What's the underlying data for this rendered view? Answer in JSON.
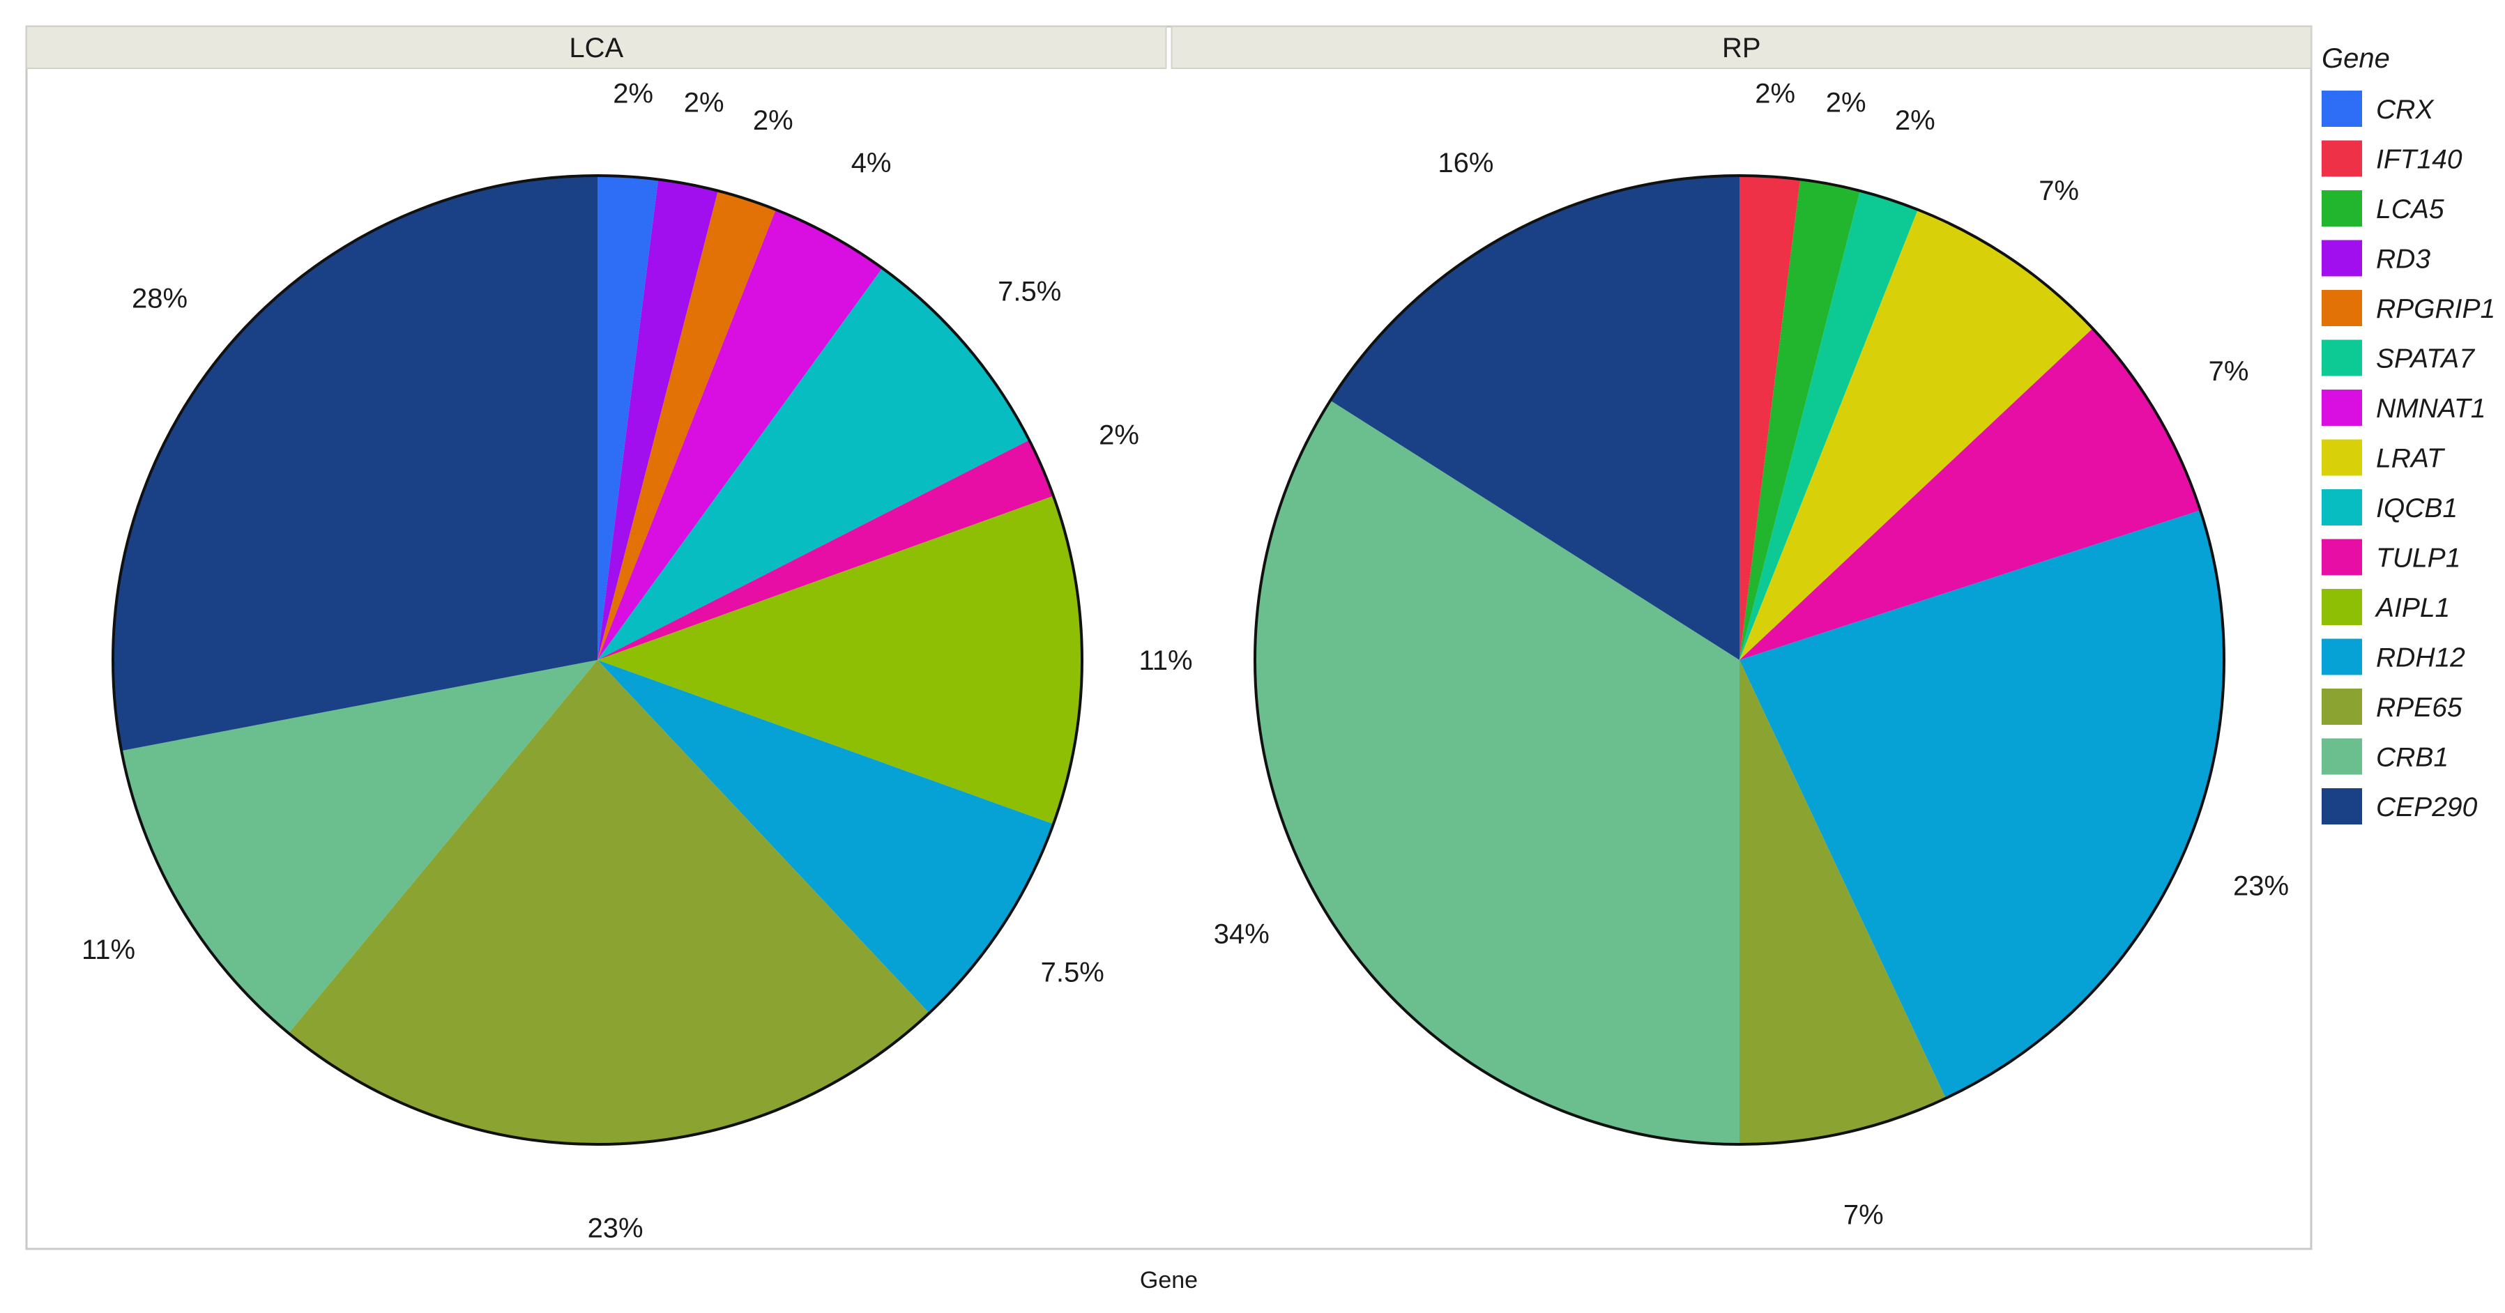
{
  "chart_data": {
    "type": "pie",
    "xlabel": "Gene",
    "legend": {
      "title": "Gene",
      "position": "right",
      "entries": [
        {
          "name": "CRX",
          "color": "#2e6ef7"
        },
        {
          "name": "IFT140",
          "color": "#ee3146"
        },
        {
          "name": "LCA5",
          "color": "#22b62f"
        },
        {
          "name": "RD3",
          "color": "#a20fee"
        },
        {
          "name": "RPGRIP1",
          "color": "#e37206"
        },
        {
          "name": "SPATA7",
          "color": "#0dc994"
        },
        {
          "name": "NMNAT1",
          "color": "#d90ee0"
        },
        {
          "name": "LRAT",
          "color": "#d8d10a"
        },
        {
          "name": "IQCB1",
          "color": "#07bdc1"
        },
        {
          "name": "TULP1",
          "color": "#e70ea5"
        },
        {
          "name": "AIPL1",
          "color": "#8fbf04"
        },
        {
          "name": "RDH12",
          "color": "#06a1d5"
        },
        {
          "name": "RPE65",
          "color": "#8ba431"
        },
        {
          "name": "CRB1",
          "color": "#6bbf8e"
        },
        {
          "name": "CEP290",
          "color": "#1a4185"
        }
      ]
    },
    "panels": [
      {
        "title": "LCA",
        "slices": [
          {
            "gene": "CRX",
            "value": 2,
            "label": "2%"
          },
          {
            "gene": "RD3",
            "value": 2,
            "label": "2%"
          },
          {
            "gene": "RPGRIP1",
            "value": 2,
            "label": "2%"
          },
          {
            "gene": "NMNAT1",
            "value": 4,
            "label": "4%"
          },
          {
            "gene": "IQCB1",
            "value": 7.5,
            "label": "7.5%"
          },
          {
            "gene": "TULP1",
            "value": 2,
            "label": "2%"
          },
          {
            "gene": "AIPL1",
            "value": 11,
            "label": "11%"
          },
          {
            "gene": "RDH12",
            "value": 7.5,
            "label": "7.5%"
          },
          {
            "gene": "RPE65",
            "value": 23,
            "label": "23%"
          },
          {
            "gene": "CRB1",
            "value": 11,
            "label": "11%"
          },
          {
            "gene": "CEP290",
            "value": 28,
            "label": "28%"
          }
        ]
      },
      {
        "title": "RP",
        "slices": [
          {
            "gene": "IFT140",
            "value": 2,
            "label": "2%"
          },
          {
            "gene": "LCA5",
            "value": 2,
            "label": "2%"
          },
          {
            "gene": "SPATA7",
            "value": 2,
            "label": "2%"
          },
          {
            "gene": "LRAT",
            "value": 7,
            "label": "7%"
          },
          {
            "gene": "TULP1",
            "value": 7,
            "label": "7%"
          },
          {
            "gene": "RDH12",
            "value": 23,
            "label": "23%"
          },
          {
            "gene": "RPE65",
            "value": 7,
            "label": "7%"
          },
          {
            "gene": "CRB1",
            "value": 34,
            "label": "34%"
          },
          {
            "gene": "CEP290",
            "value": 16,
            "label": "16%"
          }
        ]
      }
    ]
  }
}
